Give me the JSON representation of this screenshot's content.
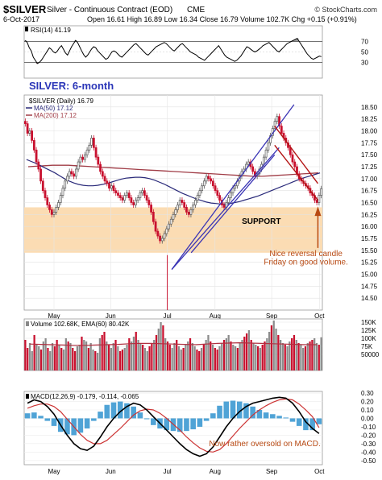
{
  "header": {
    "symbol": "$SILVER",
    "name": "Silver - Continuous Contract (EOD)",
    "exchange": "CME",
    "watermark": "© StockCharts.com",
    "date": "6-Oct-2017",
    "ohlc_line": "Open 16.61  High 16.89  Low 16.34  Close 16.79  Volume 102.7K  Chg +0.15 (+0.91%)"
  },
  "colors": {
    "up_candle": "#5a5a5a",
    "down_candle": "#c8102e",
    "ma50": "#2a2a7a",
    "ma200": "#a03c46",
    "support_band": "#fbdcb3",
    "channel": "#3a34b5",
    "wedge": "#b31414",
    "annotation": "#b84a14",
    "macd_line": "#000000",
    "signal_line": "#cc3333",
    "histogram": "#4fa3d6"
  },
  "chart_data": [
    {
      "panel": "rsi",
      "type": "line",
      "legend": "RSI(14) 41.19",
      "ylim": [
        0,
        100
      ],
      "yticks": [
        30,
        50,
        70
      ],
      "reference_lines": [
        30,
        70
      ],
      "values": [
        72,
        68,
        58,
        52,
        40,
        34,
        28,
        30,
        34,
        40,
        46,
        52,
        58,
        55,
        50,
        48,
        52,
        58,
        62,
        55,
        48,
        44,
        52,
        60,
        66,
        72,
        68,
        60,
        52,
        45,
        40,
        44,
        50,
        56,
        60,
        58,
        52,
        48,
        44,
        40,
        36,
        38,
        44,
        50,
        52,
        50,
        46,
        42,
        40,
        44,
        48,
        52,
        56,
        60,
        64,
        66,
        62,
        58,
        54,
        50,
        46,
        44,
        48,
        52,
        56,
        60,
        62,
        64,
        66,
        68,
        66,
        62,
        58,
        54,
        52,
        56,
        60,
        64,
        66,
        62,
        58,
        54,
        50,
        48,
        46,
        44,
        40,
        38,
        36,
        34,
        38,
        42,
        46,
        50,
        54,
        58,
        62,
        56,
        50,
        44,
        40,
        38,
        36,
        34,
        32,
        34,
        38,
        42,
        48,
        54,
        60,
        58,
        55,
        52,
        50,
        52,
        55,
        58,
        62,
        64,
        66,
        68,
        64,
        60,
        56,
        52,
        50,
        54,
        58,
        62,
        66,
        68,
        70,
        72,
        74,
        76,
        70,
        64,
        58,
        52,
        46,
        42,
        38,
        36,
        38,
        40,
        42,
        41
      ]
    },
    {
      "panel": "price",
      "type": "candlestick",
      "title": "SILVER: 6-month",
      "legend": [
        "$SILVER (Daily) 16.79",
        "MA(50) 17.12",
        "MA(200) 17.12"
      ],
      "ylim": [
        14.25,
        18.75
      ],
      "yticks": [
        "14.50",
        "14.75",
        "15.00",
        "15.25",
        "15.50",
        "15.75",
        "16.00",
        "16.25",
        "16.50",
        "16.75",
        "17.00",
        "17.25",
        "17.50",
        "17.75",
        "18.00",
        "18.25",
        "18.50"
      ],
      "month_labels": [
        "May",
        "Jun",
        "Jul",
        "Aug",
        "Sep",
        "Oct"
      ],
      "close": [
        18.15,
        17.95,
        18.0,
        17.8,
        17.6,
        17.35,
        17.2,
        16.95,
        16.75,
        16.6,
        16.45,
        16.35,
        16.25,
        16.3,
        16.4,
        16.5,
        16.65,
        16.8,
        16.95,
        17.05,
        17.15,
        17.1,
        17.05,
        17.2,
        17.35,
        17.45,
        17.4,
        17.5,
        17.6,
        17.7,
        17.85,
        17.65,
        17.45,
        17.3,
        17.15,
        17.05,
        16.95,
        16.9,
        16.8,
        16.85,
        16.75,
        16.7,
        16.65,
        16.6,
        16.55,
        16.65,
        16.7,
        16.6,
        16.5,
        16.45,
        16.55,
        16.6,
        16.7,
        16.75,
        16.65,
        16.55,
        16.45,
        16.3,
        16.1,
        15.9,
        15.8,
        15.7,
        15.75,
        15.85,
        15.95,
        16.05,
        16.15,
        16.25,
        16.35,
        16.45,
        16.55,
        16.5,
        16.4,
        16.3,
        16.25,
        16.35,
        16.45,
        16.55,
        16.65,
        16.75,
        16.85,
        16.95,
        17.05,
        17.0,
        16.95,
        16.85,
        16.75,
        16.65,
        16.55,
        16.45,
        16.4,
        16.5,
        16.6,
        16.7,
        16.8,
        16.85,
        16.95,
        17.05,
        17.15,
        17.2,
        17.3,
        17.35,
        17.25,
        17.15,
        17.05,
        17.1,
        17.2,
        17.3,
        17.45,
        17.6,
        17.75,
        17.9,
        18.05,
        18.2,
        18.3,
        18.1,
        17.95,
        17.85,
        17.75,
        17.65,
        17.5,
        17.35,
        17.25,
        17.1,
        17.0,
        16.95,
        16.9,
        16.85,
        16.8,
        16.7,
        16.65,
        16.55,
        16.5,
        16.65,
        16.79
      ],
      "ma50": [
        17.4,
        17.36,
        17.32,
        17.27,
        17.22,
        17.17,
        17.12,
        17.06,
        17.0,
        16.95,
        16.91,
        16.88,
        16.86,
        16.85,
        16.85,
        16.86,
        16.88,
        16.9,
        16.93,
        16.96,
        16.99,
        17.01,
        17.02,
        17.03,
        17.03,
        17.02,
        17.0,
        16.97,
        16.93,
        16.89,
        16.84,
        16.79,
        16.74,
        16.69,
        16.65,
        16.61,
        16.57,
        16.54,
        16.51,
        16.49,
        16.48,
        16.47,
        16.47,
        16.48,
        16.5,
        16.52,
        16.55,
        16.58,
        16.61,
        16.64,
        16.68,
        16.72,
        16.76,
        16.8,
        16.84,
        16.88,
        16.92,
        16.96,
        17.0,
        17.03,
        17.06,
        17.09,
        17.12
      ],
      "ma200": [
        17.25,
        17.26,
        17.27,
        17.28,
        17.28,
        17.28,
        17.27,
        17.26,
        17.25,
        17.24,
        17.23,
        17.22,
        17.21,
        17.2,
        17.19,
        17.18,
        17.17,
        17.16,
        17.15,
        17.14,
        17.13,
        17.12,
        17.11,
        17.1,
        17.09,
        17.08,
        17.07,
        17.06,
        17.05,
        17.05,
        17.06,
        17.07,
        17.08,
        17.09,
        17.1,
        17.11,
        17.12
      ],
      "annotations": {
        "support_label": "SUPPORT",
        "support_range": [
          15.45,
          16.4
        ],
        "reversal_note": [
          "Nice reversal candle",
          "Friday on good volume."
        ]
      }
    },
    {
      "panel": "volume",
      "type": "bar",
      "legend": "Volume 102.68K, EMA(60) 80.42K",
      "ylim": [
        0,
        160000
      ],
      "yticks": [
        "50000",
        "75K",
        "100K",
        "125K",
        "150K"
      ],
      "values": [
        95,
        70,
        85,
        60,
        110,
        80,
        75,
        65,
        90,
        100,
        70,
        60,
        85,
        75,
        95,
        80,
        70,
        65,
        100,
        90,
        85,
        70,
        60,
        75,
        80,
        105,
        95,
        90,
        70,
        85,
        65,
        60,
        55,
        100,
        110,
        120,
        90,
        80,
        70,
        85,
        95,
        75,
        60,
        65,
        70,
        80,
        100,
        90,
        105,
        120,
        95,
        85,
        80,
        70,
        60,
        75,
        85,
        95,
        110,
        130,
        150,
        140,
        100,
        90,
        80,
        70,
        85,
        95,
        75,
        65,
        70,
        80,
        90,
        100,
        85,
        75,
        65,
        60,
        70,
        80,
        95,
        110,
        90,
        80,
        70,
        65,
        75,
        85,
        95,
        100,
        110,
        90,
        80,
        75,
        70,
        85,
        95,
        105,
        115,
        125,
        95,
        85,
        80,
        75,
        70,
        80,
        90,
        100,
        120,
        140,
        155,
        130,
        110,
        95,
        85,
        80,
        75,
        90,
        100,
        110,
        95,
        85,
        80,
        70,
        75,
        85,
        90,
        95,
        100,
        85,
        80,
        103
      ],
      "ema": [
        82,
        81,
        80,
        79,
        78,
        78,
        79,
        80,
        81,
        83,
        84,
        84,
        83,
        82,
        81,
        80,
        82,
        84,
        85,
        86,
        85,
        84,
        83,
        82,
        81,
        80,
        80
      ]
    },
    {
      "panel": "macd",
      "type": "line",
      "legend": "MACD(12,26,9) -0.179, -0.114, -0.065",
      "ylim": [
        -0.55,
        0.32
      ],
      "yticks": [
        "0.30",
        "0.20",
        "0.10",
        "0.00",
        "-0.10",
        "-0.20",
        "-0.30",
        "-0.40",
        "-0.50"
      ],
      "macd": [
        0.18,
        0.22,
        0.2,
        0.14,
        0.05,
        -0.08,
        -0.2,
        -0.3,
        -0.36,
        -0.38,
        -0.33,
        -0.22,
        -0.1,
        0.0,
        0.08,
        0.14,
        0.18,
        0.16,
        0.1,
        0.02,
        -0.06,
        -0.14,
        -0.22,
        -0.3,
        -0.37,
        -0.42,
        -0.45,
        -0.42,
        -0.34,
        -0.22,
        -0.1,
        0.0,
        0.08,
        0.14,
        0.18,
        0.2,
        0.22,
        0.24,
        0.25,
        0.24,
        0.18,
        0.08,
        -0.04,
        -0.12,
        -0.18
      ],
      "signal": [
        0.12,
        0.15,
        0.17,
        0.17,
        0.14,
        0.08,
        -0.01,
        -0.1,
        -0.19,
        -0.26,
        -0.3,
        -0.3,
        -0.26,
        -0.19,
        -0.12,
        -0.04,
        0.04,
        0.09,
        0.11,
        0.1,
        0.06,
        0.0,
        -0.07,
        -0.14,
        -0.22,
        -0.29,
        -0.35,
        -0.39,
        -0.4,
        -0.37,
        -0.3,
        -0.21,
        -0.12,
        -0.04,
        0.04,
        0.1,
        0.15,
        0.19,
        0.22,
        0.23,
        0.22,
        0.17,
        0.1,
        0.02,
        -0.11
      ],
      "note": "Now rather oversold on MACD."
    }
  ]
}
